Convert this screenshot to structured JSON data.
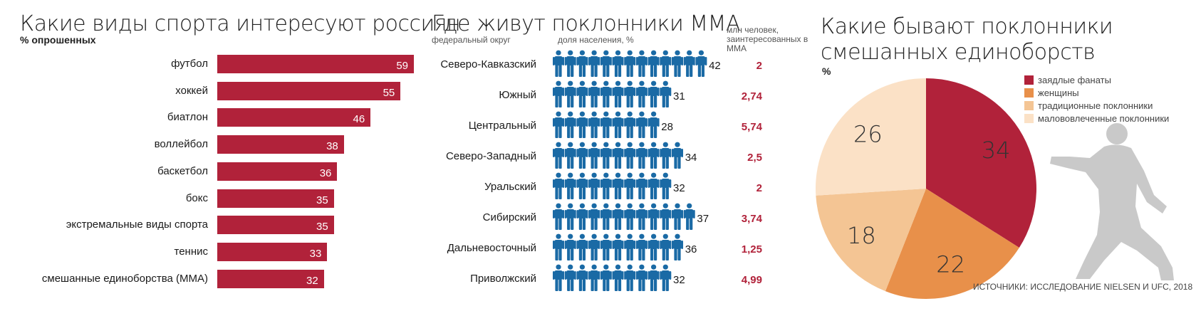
{
  "panel1": {
    "title": "Какие виды спорта интересуют россиян",
    "subtitle": "% опрошенных"
  },
  "panel2": {
    "title": "Где живут поклонники ММА",
    "col_region": "федеральный округ",
    "col_share": "доля населения, %",
    "col_mln": "млн человек, заинтересованных в ММА"
  },
  "panel3": {
    "title_line1": "Какие бывают поклонники",
    "title_line2": "смешанных единоборств",
    "subtitle": "%",
    "source": "ИСТОЧНИКИ: ИССЛЕДОВАНИЕ NIELSEN И UFC, 2018"
  },
  "chart_data": [
    {
      "type": "bar",
      "orientation": "horizontal",
      "title": "Какие виды спорта интересуют россиян",
      "subtitle": "% опрошенных",
      "categories": [
        "футбол",
        "хоккей",
        "биатлон",
        "воллейбол",
        "баскетбол",
        "бокс",
        "экстремальные виды спорта",
        "теннис",
        "смешанные единоборства (ММА)"
      ],
      "values": [
        59,
        55,
        46,
        38,
        36,
        35,
        35,
        33,
        32
      ],
      "color": "#b1223a"
    },
    {
      "type": "table",
      "title": "Где живут поклонники ММА",
      "columns": [
        "федеральный округ",
        "доля населения, %",
        "млн человек, заинтересованных в ММА"
      ],
      "rows": [
        {
          "region": "Северо-Кавказский",
          "share": 42,
          "mln": "2"
        },
        {
          "region": "Южный",
          "share": 31,
          "mln": "2,74"
        },
        {
          "region": "Центральный",
          "share": 28,
          "mln": "5,74"
        },
        {
          "region": "Северо-Западный",
          "share": 34,
          "mln": "2,5"
        },
        {
          "region": "Уральский",
          "share": 32,
          "mln": "2"
        },
        {
          "region": "Сибирский",
          "share": 37,
          "mln": "3,74"
        },
        {
          "region": "Дальневосточный",
          "share": 36,
          "mln": "1,25"
        },
        {
          "region": "Приволжский",
          "share": 32,
          "mln": "4,99"
        }
      ],
      "icon": "person-icon",
      "icon_color": "#1a6aa5",
      "value_color": "#b1223a"
    },
    {
      "type": "pie",
      "title": "Какие бывают поклонники смешанных единоборств",
      "subtitle": "%",
      "slices": [
        {
          "label": "заядлые фанаты",
          "value": 34,
          "color": "#b1223a"
        },
        {
          "label": "женщины",
          "value": 22,
          "color": "#e8904a"
        },
        {
          "label": "традиционные поклонники",
          "value": 18,
          "color": "#f4c594"
        },
        {
          "label": "малововлеченные поклонники",
          "value": 26,
          "color": "#fbe1c6"
        }
      ],
      "decoration": "martial-artist-silhouette-icon"
    }
  ]
}
